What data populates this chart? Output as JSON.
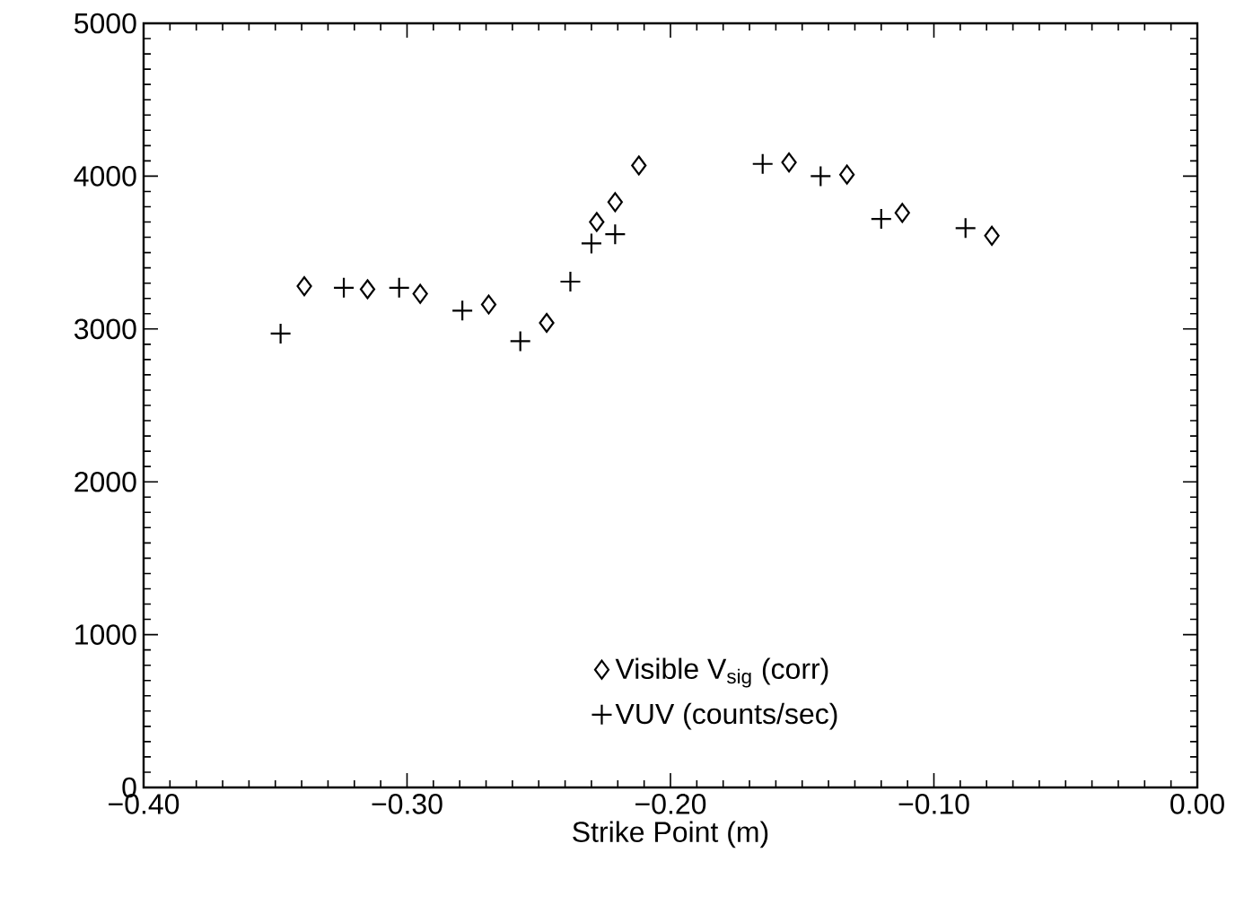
{
  "chart_data": {
    "type": "scatter",
    "xlabel": "Strike Point (m)",
    "xlim": [
      -0.4,
      0.0
    ],
    "xticks": [
      {
        "value": -0.4,
        "label": "−0.40"
      },
      {
        "value": -0.3,
        "label": "−0.30"
      },
      {
        "value": -0.2,
        "label": "−0.20"
      },
      {
        "value": -0.1,
        "label": "−0.10"
      },
      {
        "value": 0.0,
        "label": "0.00"
      }
    ],
    "ylim": [
      0,
      5000
    ],
    "yticks": [
      0,
      1000,
      2000,
      3000,
      4000,
      5000
    ],
    "legend": "bottom right",
    "grid": false,
    "series": [
      {
        "name": "Visible V$_{sig}$ (corr)",
        "color": "#000000",
        "marker": "diamond",
        "x": [
          -0.339,
          -0.315,
          -0.295,
          -0.269,
          -0.247,
          -0.228,
          -0.221,
          -0.212,
          -0.155,
          -0.133,
          -0.112,
          -0.078
        ],
        "values": [
          3280,
          3260,
          3230,
          3160,
          3040,
          3700,
          3830,
          4070,
          4090,
          4010,
          3760,
          3610
        ]
      },
      {
        "name": "VUV (counts/sec)",
        "color": "#000000",
        "marker": "cross",
        "x": [
          -0.348,
          -0.324,
          -0.303,
          -0.279,
          -0.257,
          -0.238,
          -0.23,
          -0.221,
          -0.165,
          -0.143,
          -0.12,
          -0.088
        ],
        "values": [
          2970,
          3270,
          3270,
          3120,
          2920,
          3310,
          3560,
          3620,
          4080,
          4000,
          3720,
          3660
        ]
      }
    ]
  }
}
